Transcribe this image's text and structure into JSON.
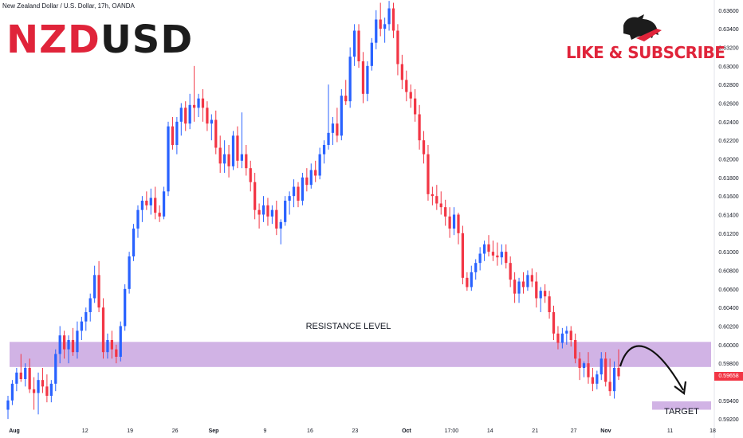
{
  "header": {
    "instrument_line": "New Zealand Dollar / U.S. Dollar, 17h, OANDA"
  },
  "title": {
    "part1": "NZD",
    "part2": "USD",
    "part1_color": "#e0243a",
    "part2_color": "#1c1c1c"
  },
  "branding": {
    "like_subscribe": "LIKE & SUBSCRIBE",
    "mascot_icon": "bull-icon",
    "color": "#e0243a"
  },
  "annotations": {
    "resistance_label": "RESISTANCE LEVEL",
    "target_label": "TARGET",
    "zone_color": "#c9a6e0",
    "arrow_icon": "curved-arrow-down-icon"
  },
  "current_price": {
    "label": "0.59658",
    "value": 0.59658,
    "color": "#f23645"
  },
  "chart_data": {
    "type": "candlestick",
    "colors": {
      "up": "#2962ff",
      "down": "#f23645"
    },
    "y_ticks": [
      "0.63600",
      "0.63400",
      "0.63200",
      "0.63000",
      "0.62800",
      "0.62600",
      "0.62400",
      "0.62200",
      "0.62000",
      "0.61800",
      "0.61600",
      "0.61400",
      "0.61200",
      "0.61000",
      "0.60800",
      "0.60600",
      "0.60400",
      "0.60200",
      "0.60000",
      "0.59800",
      "0.59400",
      "0.59200"
    ],
    "y_range": [
      0.5915,
      0.6371
    ],
    "x_ticks": [
      "Aug",
      "12",
      "19",
      "26",
      "Sep",
      "9",
      "16",
      "23",
      "Oct",
      "17:00",
      "14",
      "21",
      "27",
      "Nov",
      "11",
      "18"
    ],
    "x_range": [
      "2024-08-01",
      "2024-11-18"
    ],
    "resistance_zone": [
      0.5976,
      0.6003
    ],
    "target_zone": [
      0.593,
      0.5939
    ],
    "candles": [
      {
        "o": 0.593,
        "h": 0.5945,
        "l": 0.592,
        "c": 0.594
      },
      {
        "o": 0.594,
        "h": 0.5962,
        "l": 0.5935,
        "c": 0.5958
      },
      {
        "o": 0.5958,
        "h": 0.5975,
        "l": 0.595,
        "c": 0.597
      },
      {
        "o": 0.597,
        "h": 0.599,
        "l": 0.596,
        "c": 0.5963
      },
      {
        "o": 0.5963,
        "h": 0.598,
        "l": 0.5955,
        "c": 0.5975
      },
      {
        "o": 0.5975,
        "h": 0.5985,
        "l": 0.5948,
        "c": 0.5952
      },
      {
        "o": 0.5952,
        "h": 0.5965,
        "l": 0.593,
        "c": 0.5948
      },
      {
        "o": 0.5948,
        "h": 0.597,
        "l": 0.5925,
        "c": 0.5962
      },
      {
        "o": 0.5962,
        "h": 0.5975,
        "l": 0.5948,
        "c": 0.5955
      },
      {
        "o": 0.5955,
        "h": 0.5968,
        "l": 0.5938,
        "c": 0.5945
      },
      {
        "o": 0.5945,
        "h": 0.5962,
        "l": 0.5938,
        "c": 0.5958
      },
      {
        "o": 0.5958,
        "h": 0.5995,
        "l": 0.595,
        "c": 0.599
      },
      {
        "o": 0.599,
        "h": 0.602,
        "l": 0.598,
        "c": 0.601
      },
      {
        "o": 0.601,
        "h": 0.6015,
        "l": 0.5985,
        "c": 0.5995
      },
      {
        "o": 0.5995,
        "h": 0.601,
        "l": 0.598,
        "c": 0.6005
      },
      {
        "o": 0.6005,
        "h": 0.6018,
        "l": 0.5988,
        "c": 0.5992
      },
      {
        "o": 0.5992,
        "h": 0.6025,
        "l": 0.5985,
        "c": 0.6015
      },
      {
        "o": 0.6015,
        "h": 0.603,
        "l": 0.6005,
        "c": 0.6025
      },
      {
        "o": 0.6025,
        "h": 0.604,
        "l": 0.6015,
        "c": 0.6035
      },
      {
        "o": 0.6035,
        "h": 0.6055,
        "l": 0.6025,
        "c": 0.605
      },
      {
        "o": 0.605,
        "h": 0.6085,
        "l": 0.6045,
        "c": 0.6075
      },
      {
        "o": 0.6075,
        "h": 0.609,
        "l": 0.6035,
        "c": 0.604
      },
      {
        "o": 0.604,
        "h": 0.605,
        "l": 0.5985,
        "c": 0.5992
      },
      {
        "o": 0.5992,
        "h": 0.6012,
        "l": 0.5985,
        "c": 0.6005
      },
      {
        "o": 0.6005,
        "h": 0.6015,
        "l": 0.5985,
        "c": 0.5995
      },
      {
        "o": 0.5995,
        "h": 0.6,
        "l": 0.598,
        "c": 0.5987
      },
      {
        "o": 0.5987,
        "h": 0.6025,
        "l": 0.5982,
        "c": 0.602
      },
      {
        "o": 0.602,
        "h": 0.6065,
        "l": 0.6015,
        "c": 0.606
      },
      {
        "o": 0.606,
        "h": 0.61,
        "l": 0.6055,
        "c": 0.6095
      },
      {
        "o": 0.6095,
        "h": 0.613,
        "l": 0.609,
        "c": 0.6125
      },
      {
        "o": 0.6125,
        "h": 0.615,
        "l": 0.6115,
        "c": 0.6145
      },
      {
        "o": 0.6145,
        "h": 0.616,
        "l": 0.6132,
        "c": 0.6155
      },
      {
        "o": 0.6155,
        "h": 0.6165,
        "l": 0.6145,
        "c": 0.615
      },
      {
        "o": 0.615,
        "h": 0.6168,
        "l": 0.614,
        "c": 0.6158
      },
      {
        "o": 0.6158,
        "h": 0.617,
        "l": 0.6135,
        "c": 0.6142
      },
      {
        "o": 0.6142,
        "h": 0.615,
        "l": 0.6132,
        "c": 0.6138
      },
      {
        "o": 0.6138,
        "h": 0.617,
        "l": 0.6135,
        "c": 0.6165
      },
      {
        "o": 0.6165,
        "h": 0.624,
        "l": 0.616,
        "c": 0.6235
      },
      {
        "o": 0.6235,
        "h": 0.6245,
        "l": 0.621,
        "c": 0.6215
      },
      {
        "o": 0.6215,
        "h": 0.6245,
        "l": 0.6205,
        "c": 0.624
      },
      {
        "o": 0.624,
        "h": 0.626,
        "l": 0.6225,
        "c": 0.6255
      },
      {
        "o": 0.6255,
        "h": 0.6262,
        "l": 0.623,
        "c": 0.6238
      },
      {
        "o": 0.6238,
        "h": 0.627,
        "l": 0.6232,
        "c": 0.6258
      },
      {
        "o": 0.6258,
        "h": 0.63,
        "l": 0.624,
        "c": 0.6255
      },
      {
        "o": 0.6255,
        "h": 0.627,
        "l": 0.6245,
        "c": 0.6265
      },
      {
        "o": 0.6265,
        "h": 0.6275,
        "l": 0.624,
        "c": 0.6255
      },
      {
        "o": 0.6255,
        "h": 0.6262,
        "l": 0.623,
        "c": 0.6238
      },
      {
        "o": 0.6238,
        "h": 0.6248,
        "l": 0.622,
        "c": 0.6242
      },
      {
        "o": 0.6242,
        "h": 0.6252,
        "l": 0.6205,
        "c": 0.6212
      },
      {
        "o": 0.6212,
        "h": 0.6225,
        "l": 0.6185,
        "c": 0.6195
      },
      {
        "o": 0.6195,
        "h": 0.622,
        "l": 0.6185,
        "c": 0.6205
      },
      {
        "o": 0.6205,
        "h": 0.6215,
        "l": 0.618,
        "c": 0.6192
      },
      {
        "o": 0.6192,
        "h": 0.623,
        "l": 0.6188,
        "c": 0.6225
      },
      {
        "o": 0.6225,
        "h": 0.6235,
        "l": 0.619,
        "c": 0.6198
      },
      {
        "o": 0.6198,
        "h": 0.625,
        "l": 0.619,
        "c": 0.6205
      },
      {
        "o": 0.6205,
        "h": 0.6215,
        "l": 0.6182,
        "c": 0.619
      },
      {
        "o": 0.619,
        "h": 0.6198,
        "l": 0.6165,
        "c": 0.6175
      },
      {
        "o": 0.6175,
        "h": 0.6185,
        "l": 0.6135,
        "c": 0.6145
      },
      {
        "o": 0.6145,
        "h": 0.6152,
        "l": 0.6125,
        "c": 0.614
      },
      {
        "o": 0.614,
        "h": 0.616,
        "l": 0.6132,
        "c": 0.615
      },
      {
        "o": 0.615,
        "h": 0.6158,
        "l": 0.6128,
        "c": 0.6138
      },
      {
        "o": 0.6138,
        "h": 0.615,
        "l": 0.613,
        "c": 0.6145
      },
      {
        "o": 0.6145,
        "h": 0.6155,
        "l": 0.6118,
        "c": 0.6125
      },
      {
        "o": 0.6125,
        "h": 0.6135,
        "l": 0.6108,
        "c": 0.6132
      },
      {
        "o": 0.6132,
        "h": 0.616,
        "l": 0.6128,
        "c": 0.6155
      },
      {
        "o": 0.6155,
        "h": 0.6165,
        "l": 0.614,
        "c": 0.616
      },
      {
        "o": 0.616,
        "h": 0.6178,
        "l": 0.6148,
        "c": 0.617
      },
      {
        "o": 0.617,
        "h": 0.6175,
        "l": 0.6148,
        "c": 0.6155
      },
      {
        "o": 0.6155,
        "h": 0.6185,
        "l": 0.615,
        "c": 0.618
      },
      {
        "o": 0.618,
        "h": 0.619,
        "l": 0.6165,
        "c": 0.6172
      },
      {
        "o": 0.6172,
        "h": 0.6195,
        "l": 0.6168,
        "c": 0.6188
      },
      {
        "o": 0.6188,
        "h": 0.6198,
        "l": 0.6175,
        "c": 0.6182
      },
      {
        "o": 0.6182,
        "h": 0.6212,
        "l": 0.6178,
        "c": 0.6205
      },
      {
        "o": 0.6205,
        "h": 0.622,
        "l": 0.6195,
        "c": 0.6215
      },
      {
        "o": 0.6215,
        "h": 0.628,
        "l": 0.621,
        "c": 0.6228
      },
      {
        "o": 0.6228,
        "h": 0.6245,
        "l": 0.6215,
        "c": 0.6238
      },
      {
        "o": 0.6238,
        "h": 0.6255,
        "l": 0.6218,
        "c": 0.6225
      },
      {
        "o": 0.6225,
        "h": 0.6275,
        "l": 0.622,
        "c": 0.6268
      },
      {
        "o": 0.6268,
        "h": 0.6285,
        "l": 0.6258,
        "c": 0.6262
      },
      {
        "o": 0.6262,
        "h": 0.632,
        "l": 0.6255,
        "c": 0.631
      },
      {
        "o": 0.631,
        "h": 0.6345,
        "l": 0.63,
        "c": 0.6338
      },
      {
        "o": 0.6338,
        "h": 0.6345,
        "l": 0.6298,
        "c": 0.6305
      },
      {
        "o": 0.6305,
        "h": 0.6315,
        "l": 0.626,
        "c": 0.627
      },
      {
        "o": 0.627,
        "h": 0.6305,
        "l": 0.6262,
        "c": 0.63
      },
      {
        "o": 0.63,
        "h": 0.633,
        "l": 0.6295,
        "c": 0.6325
      },
      {
        "o": 0.6325,
        "h": 0.636,
        "l": 0.6318,
        "c": 0.635
      },
      {
        "o": 0.635,
        "h": 0.6368,
        "l": 0.6332,
        "c": 0.634
      },
      {
        "o": 0.634,
        "h": 0.6352,
        "l": 0.6325,
        "c": 0.6345
      },
      {
        "o": 0.6345,
        "h": 0.637,
        "l": 0.6338,
        "c": 0.6362
      },
      {
        "o": 0.6362,
        "h": 0.6368,
        "l": 0.633,
        "c": 0.6338
      },
      {
        "o": 0.6338,
        "h": 0.6345,
        "l": 0.629,
        "c": 0.6302
      },
      {
        "o": 0.6302,
        "h": 0.6312,
        "l": 0.6275,
        "c": 0.6285
      },
      {
        "o": 0.6285,
        "h": 0.6295,
        "l": 0.6262,
        "c": 0.6272
      },
      {
        "o": 0.6272,
        "h": 0.628,
        "l": 0.6255,
        "c": 0.6265
      },
      {
        "o": 0.6265,
        "h": 0.6275,
        "l": 0.624,
        "c": 0.6248
      },
      {
        "o": 0.6248,
        "h": 0.6258,
        "l": 0.621,
        "c": 0.622
      },
      {
        "o": 0.622,
        "h": 0.623,
        "l": 0.6195,
        "c": 0.6205
      },
      {
        "o": 0.6205,
        "h": 0.6215,
        "l": 0.6155,
        "c": 0.6162
      },
      {
        "o": 0.6162,
        "h": 0.617,
        "l": 0.615,
        "c": 0.616
      },
      {
        "o": 0.616,
        "h": 0.6172,
        "l": 0.6145,
        "c": 0.6152
      },
      {
        "o": 0.6152,
        "h": 0.6165,
        "l": 0.614,
        "c": 0.6148
      },
      {
        "o": 0.6148,
        "h": 0.6156,
        "l": 0.6128,
        "c": 0.6138
      },
      {
        "o": 0.6138,
        "h": 0.6148,
        "l": 0.6115,
        "c": 0.6125
      },
      {
        "o": 0.6125,
        "h": 0.6148,
        "l": 0.6118,
        "c": 0.614
      },
      {
        "o": 0.614,
        "h": 0.6142,
        "l": 0.6108,
        "c": 0.612
      },
      {
        "o": 0.612,
        "h": 0.6128,
        "l": 0.6065,
        "c": 0.6072
      },
      {
        "o": 0.6072,
        "h": 0.6078,
        "l": 0.6058,
        "c": 0.6062
      },
      {
        "o": 0.6062,
        "h": 0.6085,
        "l": 0.6058,
        "c": 0.6078
      },
      {
        "o": 0.6078,
        "h": 0.6092,
        "l": 0.607,
        "c": 0.6088
      },
      {
        "o": 0.6088,
        "h": 0.6105,
        "l": 0.608,
        "c": 0.6098
      },
      {
        "o": 0.6098,
        "h": 0.6112,
        "l": 0.609,
        "c": 0.6108
      },
      {
        "o": 0.6108,
        "h": 0.6118,
        "l": 0.6095,
        "c": 0.61
      },
      {
        "o": 0.61,
        "h": 0.6112,
        "l": 0.609,
        "c": 0.6096
      },
      {
        "o": 0.6096,
        "h": 0.611,
        "l": 0.6085,
        "c": 0.6094
      },
      {
        "o": 0.6094,
        "h": 0.6108,
        "l": 0.6086,
        "c": 0.61
      },
      {
        "o": 0.61,
        "h": 0.6108,
        "l": 0.6082,
        "c": 0.6088
      },
      {
        "o": 0.6088,
        "h": 0.6095,
        "l": 0.6062,
        "c": 0.607
      },
      {
        "o": 0.607,
        "h": 0.6078,
        "l": 0.6045,
        "c": 0.6055
      },
      {
        "o": 0.6055,
        "h": 0.6072,
        "l": 0.6045,
        "c": 0.6068
      },
      {
        "o": 0.6068,
        "h": 0.6078,
        "l": 0.6055,
        "c": 0.6062
      },
      {
        "o": 0.6062,
        "h": 0.608,
        "l": 0.6058,
        "c": 0.6075
      },
      {
        "o": 0.6075,
        "h": 0.6082,
        "l": 0.6062,
        "c": 0.6068
      },
      {
        "o": 0.6068,
        "h": 0.6078,
        "l": 0.604,
        "c": 0.605
      },
      {
        "o": 0.605,
        "h": 0.6062,
        "l": 0.6035,
        "c": 0.6058
      },
      {
        "o": 0.6058,
        "h": 0.6065,
        "l": 0.6045,
        "c": 0.6052
      },
      {
        "o": 0.6052,
        "h": 0.6058,
        "l": 0.6028,
        "c": 0.6035
      },
      {
        "o": 0.6035,
        "h": 0.6042,
        "l": 0.6005,
        "c": 0.6012
      },
      {
        "o": 0.6012,
        "h": 0.602,
        "l": 0.5995,
        "c": 0.6002
      },
      {
        "o": 0.6002,
        "h": 0.6018,
        "l": 0.5996,
        "c": 0.6012
      },
      {
        "o": 0.6012,
        "h": 0.602,
        "l": 0.6,
        "c": 0.6015
      },
      {
        "o": 0.6015,
        "h": 0.602,
        "l": 0.5998,
        "c": 0.6005
      },
      {
        "o": 0.6005,
        "h": 0.6012,
        "l": 0.598,
        "c": 0.5985
      },
      {
        "o": 0.5985,
        "h": 0.5992,
        "l": 0.5962,
        "c": 0.5975
      },
      {
        "o": 0.5975,
        "h": 0.5982,
        "l": 0.5965,
        "c": 0.598
      },
      {
        "o": 0.598,
        "h": 0.5992,
        "l": 0.5958,
        "c": 0.5965
      },
      {
        "o": 0.5965,
        "h": 0.5975,
        "l": 0.595,
        "c": 0.5958
      },
      {
        "o": 0.5958,
        "h": 0.5972,
        "l": 0.5952,
        "c": 0.5968
      },
      {
        "o": 0.5968,
        "h": 0.5992,
        "l": 0.5962,
        "c": 0.5985
      },
      {
        "o": 0.5985,
        "h": 0.5992,
        "l": 0.5955,
        "c": 0.596
      },
      {
        "o": 0.596,
        "h": 0.5985,
        "l": 0.5945,
        "c": 0.595
      },
      {
        "o": 0.595,
        "h": 0.5982,
        "l": 0.5942,
        "c": 0.5975
      },
      {
        "o": 0.5975,
        "h": 0.5995,
        "l": 0.5962,
        "c": 0.5966
      }
    ]
  }
}
